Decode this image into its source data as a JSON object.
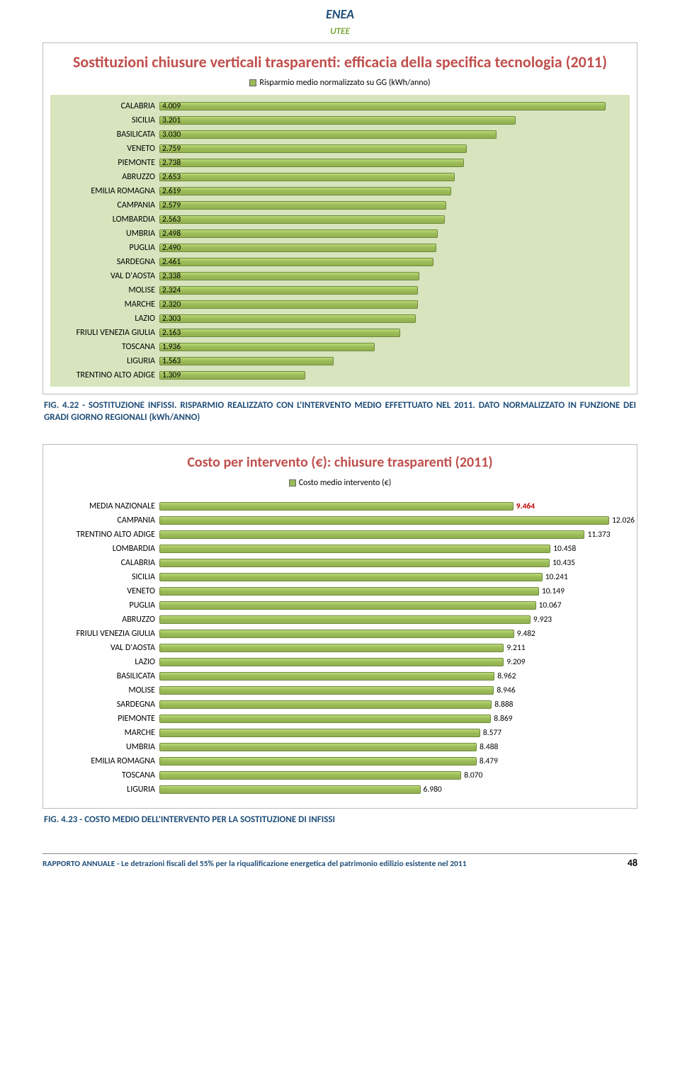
{
  "logo": {
    "line1": "ENEA",
    "line1_color": "#1f4e79",
    "line2": "UTEE",
    "line2_color": "#7aa83a",
    "bg": "#ffffff",
    "border": "#9bbb59"
  },
  "chart1": {
    "type": "bar",
    "title": "Sostituzioni chiusure verticali trasparenti: efficacia della specifica tecnologia (2011)",
    "title_color": "#c0504d",
    "title_fontsize": 22,
    "legend_label": "Risparmio medio normalizzato su GG (kWh/anno)",
    "legend_swatch": "#9bbb59",
    "plot_bg": "#d7e4bd",
    "bar_fill": "#9bbb59",
    "bar_border": "#71893f",
    "xmax": 4.2,
    "label_fontsize": 12,
    "value_fontsize": 11.5,
    "rows": [
      {
        "label": "CALABRIA",
        "value": 4.009,
        "text": "4.009"
      },
      {
        "label": "SICILIA",
        "value": 3.201,
        "text": "3.201"
      },
      {
        "label": "BASILICATA",
        "value": 3.03,
        "text": "3.030"
      },
      {
        "label": "VENETO",
        "value": 2.759,
        "text": "2.759"
      },
      {
        "label": "PIEMONTE",
        "value": 2.738,
        "text": "2.738"
      },
      {
        "label": "ABRUZZO",
        "value": 2.653,
        "text": "2.653"
      },
      {
        "label": "EMILIA ROMAGNA",
        "value": 2.619,
        "text": "2.619"
      },
      {
        "label": "CAMPANIA",
        "value": 2.579,
        "text": "2.579"
      },
      {
        "label": "LOMBARDIA",
        "value": 2.563,
        "text": "2.563"
      },
      {
        "label": "UMBRIA",
        "value": 2.498,
        "text": "2.498"
      },
      {
        "label": "PUGLIA",
        "value": 2.49,
        "text": "2.490"
      },
      {
        "label": "SARDEGNA",
        "value": 2.461,
        "text": "2.461"
      },
      {
        "label": "VAL D'AOSTA",
        "value": 2.338,
        "text": "2.338"
      },
      {
        "label": "MOLISE",
        "value": 2.324,
        "text": "2.324"
      },
      {
        "label": "MARCHE",
        "value": 2.32,
        "text": "2.320"
      },
      {
        "label": "LAZIO",
        "value": 2.303,
        "text": "2.303"
      },
      {
        "label": "FRIULI VENEZIA GIULIA",
        "value": 2.163,
        "text": "2.163"
      },
      {
        "label": "TOSCANA",
        "value": 1.936,
        "text": "1.936"
      },
      {
        "label": "LIGURIA",
        "value": 1.563,
        "text": "1.563"
      },
      {
        "label": "TRENTINO ALTO ADIGE",
        "value": 1.309,
        "text": "1.309"
      }
    ]
  },
  "caption1": "FIG. 4.22 - SOSTITUZIONE INFISSI. RISPARMIO REALIZZATO CON L'INTERVENTO MEDIO EFFETTUATO NEL 2011. DATO NORMALIZZATO IN FUNZIONE DEI GRADI GIORNO REGIONALI (kWh/ANNO)",
  "chart2": {
    "type": "bar",
    "title": "Costo per intervento (€): chiusure trasparenti (2011)",
    "title_color": "#c0504d",
    "title_fontsize": 20,
    "legend_label": "Costo medio intervento (€)",
    "legend_swatch": "#9bbb59",
    "plot_bg": "#ffffff",
    "bar_fill": "#9bbb59",
    "bar_border": "#71893f",
    "xmax": 12.5,
    "label_fontsize": 12,
    "value_fontsize": 11.5,
    "rows": [
      {
        "label": "MEDIA NAZIONALE",
        "value": 9.464,
        "text": "9.464",
        "value_color": "#c00000"
      },
      {
        "label": "CAMPANIA",
        "value": 12.026,
        "text": "12.026"
      },
      {
        "label": "TRENTINO ALTO ADIGE",
        "value": 11.373,
        "text": "11.373"
      },
      {
        "label": "LOMBARDIA",
        "value": 10.458,
        "text": "10.458"
      },
      {
        "label": "CALABRIA",
        "value": 10.435,
        "text": "10.435"
      },
      {
        "label": "SICILIA",
        "value": 10.241,
        "text": "10.241"
      },
      {
        "label": "VENETO",
        "value": 10.149,
        "text": "10.149"
      },
      {
        "label": "PUGLIA",
        "value": 10.067,
        "text": "10.067"
      },
      {
        "label": "ABRUZZO",
        "value": 9.923,
        "text": "9.923"
      },
      {
        "label": "FRIULI VENEZIA GIULIA",
        "value": 9.482,
        "text": "9.482"
      },
      {
        "label": "VAL D'AOSTA",
        "value": 9.211,
        "text": "9.211"
      },
      {
        "label": "LAZIO",
        "value": 9.209,
        "text": "9.209"
      },
      {
        "label": "BASILICATA",
        "value": 8.962,
        "text": "8.962"
      },
      {
        "label": "MOLISE",
        "value": 8.946,
        "text": "8.946"
      },
      {
        "label": "SARDEGNA",
        "value": 8.888,
        "text": "8.888"
      },
      {
        "label": "PIEMONTE",
        "value": 8.869,
        "text": "8.869"
      },
      {
        "label": "MARCHE",
        "value": 8.577,
        "text": "8.577"
      },
      {
        "label": "UMBRIA",
        "value": 8.488,
        "text": "8.488"
      },
      {
        "label": "EMILIA ROMAGNA",
        "value": 8.479,
        "text": "8.479"
      },
      {
        "label": "TOSCANA",
        "value": 8.07,
        "text": "8.070"
      },
      {
        "label": "LIGURIA",
        "value": 6.98,
        "text": "6.980"
      }
    ]
  },
  "caption2": "FIG. 4.23 - COSTO MEDIO DELL'INTERVENTO PER LA SOSTITUZIONE DI INFISSI",
  "footer": {
    "text": "RAPPORTO ANNUALE - Le detrazioni fiscali del 55% per la riqualificazione energetica del patrimonio edilizio esistente nel 2011",
    "page": "48"
  }
}
